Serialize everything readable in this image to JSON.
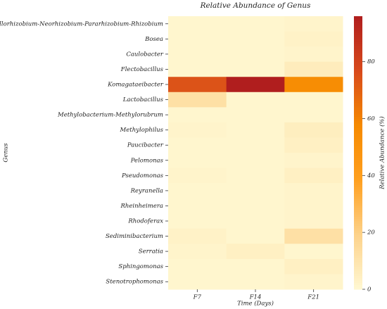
{
  "chart_data": {
    "type": "heatmap",
    "title": "Relative Abundance of Genus",
    "x_label": "Time (Days)",
    "y_label": "Genus",
    "x": [
      "F7",
      "F14",
      "F21"
    ],
    "y": [
      "Allorhizobium-Neorhizobium-Pararhizobium-Rhizobium",
      "Bosea",
      "Caulobacter",
      "Flectobacillus",
      "Komagataeibacter",
      "Lactobacillus",
      "Methylobacterium-Methylorubrum",
      "Methylophilus",
      "Paucibacter",
      "Pelomonas",
      "Pseudomonas",
      "Reyranella",
      "Rheinheimera",
      "Rhodoferax",
      "Sediminibacterium",
      "Serratia",
      "Sphingomonas",
      "Stenotrophomonas"
    ],
    "z": [
      [
        1,
        1,
        2
      ],
      [
        1,
        1,
        3
      ],
      [
        1,
        1,
        2
      ],
      [
        1,
        1,
        6
      ],
      [
        74,
        96,
        55
      ],
      [
        12,
        1,
        1
      ],
      [
        1,
        1,
        1
      ],
      [
        2,
        1,
        5
      ],
      [
        1,
        1,
        4
      ],
      [
        1,
        1,
        2
      ],
      [
        2,
        1,
        4
      ],
      [
        1,
        1,
        2
      ],
      [
        1,
        1,
        2
      ],
      [
        1,
        1,
        2
      ],
      [
        3,
        1,
        12
      ],
      [
        2,
        4,
        1
      ],
      [
        1,
        1,
        4
      ],
      [
        1,
        1,
        2
      ]
    ],
    "colorbar_label": "Relative Abundance (%)",
    "zlim": [
      0,
      96
    ],
    "zticks": [
      0,
      20,
      40,
      60,
      80
    ],
    "colorscale": [
      [
        0,
        "#fff8d2"
      ],
      [
        0.2,
        "#fdd28a"
      ],
      [
        0.4,
        "#ffa020"
      ],
      [
        0.6,
        "#f68a00"
      ],
      [
        0.8,
        "#d84a1c"
      ],
      [
        1,
        "#b01e1e"
      ]
    ]
  }
}
